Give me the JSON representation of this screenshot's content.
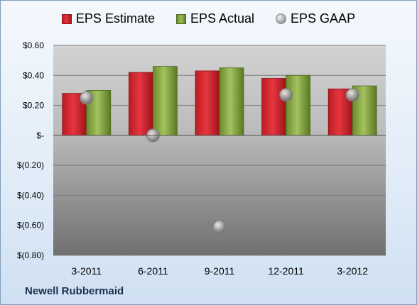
{
  "chart_data": {
    "type": "bar",
    "categories": [
      "3-2011",
      "6-2011",
      "9-2011",
      "12-2011",
      "3-2012"
    ],
    "series": [
      {
        "name": "EPS Estimate",
        "values": [
          0.28,
          0.42,
          0.43,
          0.38,
          0.31
        ],
        "color": "#d7262f"
      },
      {
        "name": "EPS Actual",
        "values": [
          0.3,
          0.46,
          0.45,
          0.4,
          0.33
        ],
        "color": "#8fb04a"
      },
      {
        "name": "EPS GAAP",
        "values": [
          0.25,
          0.0,
          -0.61,
          0.27,
          0.27
        ],
        "color": "#a6a6a6",
        "marker": "circle"
      }
    ],
    "yticks": [
      0.6,
      0.4,
      0.2,
      0,
      -0.2,
      -0.4,
      -0.6,
      -0.8
    ],
    "ytick_labels": [
      "$0.60",
      "$0.40",
      "$0.20",
      "$-",
      "$(0.20)",
      "$(0.40)",
      "$(0.60)",
      "$(0.80)"
    ],
    "ylim": [
      -0.8,
      0.6
    ],
    "grid": true,
    "legend_position": "top"
  },
  "company": "Newell Rubbermaid"
}
